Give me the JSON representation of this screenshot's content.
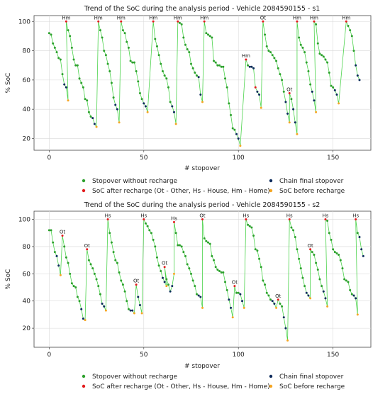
{
  "colors": {
    "background": "#ffffff",
    "grid": "#d9d9d9",
    "connector_line": "#4cd34c",
    "stopover_without_recharge": "#2ca02c",
    "soc_after_recharge": "#e31a1c",
    "chain_final_stopover": "#0b2a5b",
    "soc_before_recharge": "#f5a623"
  },
  "chart_data": [
    {
      "type": "scatter",
      "title": "Trend of the SoC during the analysis period - Vehicle 2084590155 - s1",
      "xlabel": "# stopover",
      "ylabel": "% SoC",
      "xlim": [
        -8,
        170
      ],
      "ylim": [
        12,
        104
      ],
      "xticks": [
        0,
        50,
        100,
        150
      ],
      "yticks": [
        20,
        40,
        60,
        80,
        100
      ],
      "grid": true,
      "legend_placement": "below",
      "legend": [
        "Stopover without recharge",
        "SoC after recharge (Ot - Other, Hs - House, Hm - Home)",
        "Chain final stopover",
        "SoC before recharge"
      ],
      "segments": [
        {
          "x0": 0,
          "values": [
            92,
            91,
            85,
            82,
            79,
            75,
            74,
            64,
            57,
            55,
            46
          ],
          "end_marker": "before"
        },
        {
          "x0": 9,
          "values": [
            100,
            94,
            90,
            82,
            74,
            70,
            70,
            61,
            58,
            55,
            47,
            46,
            38,
            35,
            34,
            30,
            28
          ],
          "end_marker": "before",
          "label": "Hm"
        },
        {
          "x0": 26,
          "values": [
            100,
            94,
            89,
            80,
            77,
            71,
            66,
            58,
            48,
            43,
            40,
            31
          ],
          "end_marker": "before",
          "label": "Hm"
        },
        {
          "x0": 38,
          "values": [
            100,
            94,
            92,
            86,
            82,
            73,
            72,
            72,
            66,
            59,
            51,
            47,
            44,
            42,
            38
          ],
          "end_marker": "before",
          "label": "Hm"
        },
        {
          "x0": 55,
          "values": [
            100,
            88,
            83,
            77,
            71,
            66,
            63,
            61,
            55,
            45,
            42,
            38,
            30
          ],
          "end_marker": "before",
          "label": "Hm"
        },
        {
          "x0": 68,
          "values": [
            100,
            99,
            98,
            89,
            84,
            81,
            79,
            71,
            68,
            65,
            63,
            62,
            50,
            45
          ],
          "end_marker": "before",
          "label": "Hm"
        },
        {
          "x0": 82,
          "values": [
            100,
            92,
            91,
            90,
            89,
            73,
            72,
            70,
            70,
            69,
            69,
            61,
            55,
            44,
            36,
            27,
            26,
            23,
            20,
            15
          ],
          "end_marker": "before",
          "label": "Hm"
        },
        {
          "x0": 104,
          "values": [
            74,
            70,
            69,
            69,
            68
          ],
          "end_marker": "chain",
          "label": "Hm"
        },
        {
          "x0": 109,
          "values": [
            55,
            52,
            50,
            41
          ],
          "end_marker": "before"
        },
        {
          "x0": 113,
          "values": [
            100,
            91,
            83,
            80,
            79,
            77,
            75,
            73,
            68,
            64,
            60,
            52,
            45,
            37,
            31
          ],
          "end_marker": "before",
          "label": "Ot"
        },
        {
          "x0": 127,
          "values": [
            51,
            47,
            40,
            31,
            23
          ],
          "end_marker": "before",
          "label": "Ot"
        },
        {
          "x0": 131,
          "values": [
            100,
            89,
            84,
            82,
            79,
            72,
            66,
            57,
            52,
            46,
            38
          ],
          "end_marker": "before",
          "label": "Hm"
        },
        {
          "x0": 140,
          "values": [
            100,
            98,
            85,
            78,
            77,
            76,
            74,
            72,
            65,
            56,
            55,
            53,
            50,
            44
          ],
          "end_marker": "before",
          "label": "Hm"
        },
        {
          "x0": 157,
          "values": [
            100,
            97,
            94,
            90,
            80,
            70,
            63,
            60
          ],
          "end_marker": "chain",
          "label": "Hm"
        }
      ]
    },
    {
      "type": "scatter",
      "title": "Trend of the SoC during the analysis period - Vehicle 2084590155 - s2",
      "xlabel": "# stopover",
      "ylabel": "% SoC",
      "xlim": [
        -8,
        170
      ],
      "ylim": [
        6,
        106
      ],
      "xticks": [
        0,
        50,
        100,
        150
      ],
      "yticks": [
        20,
        40,
        60,
        80,
        100
      ],
      "grid": true,
      "legend_placement": "below",
      "legend": [
        "Stopover without recharge",
        "SoC after recharge (Ot - Other, Hs - House, Hm - Home)",
        "Chain final stopover",
        "SoC before recharge"
      ],
      "segments": [
        {
          "x0": 0,
          "values": [
            92,
            92,
            83,
            76,
            73,
            66,
            59
          ],
          "end_marker": "before"
        },
        {
          "x0": 7,
          "values": [
            88,
            80,
            72,
            68,
            60,
            53,
            51,
            50,
            43,
            40,
            34,
            27,
            26
          ],
          "end_marker": "before",
          "label": "Ot"
        },
        {
          "x0": 20,
          "values": [
            78,
            70,
            67,
            64,
            60,
            56,
            51,
            45,
            38,
            36,
            33
          ],
          "end_marker": "before",
          "label": "Ot"
        },
        {
          "x0": 31,
          "values": [
            100,
            90,
            83,
            76,
            70,
            68,
            61,
            55,
            52,
            47,
            40,
            34,
            33,
            33,
            31
          ],
          "end_marker": "before",
          "label": "Hs"
        },
        {
          "x0": 46,
          "values": [
            52,
            43,
            37,
            31
          ],
          "end_marker": "before",
          "label": "Ot"
        },
        {
          "x0": 50,
          "values": [
            100,
            97,
            95,
            92,
            90,
            85,
            80,
            72,
            66,
            62,
            57,
            54,
            51
          ],
          "end_marker": "before",
          "label": "Hs"
        },
        {
          "x0": 61,
          "values": [
            65,
            56,
            52,
            47,
            51,
            60
          ],
          "end_marker": "before",
          "label": "Ot"
        },
        {
          "x0": 66,
          "values": [
            98,
            90,
            81,
            81,
            80,
            76,
            73,
            67,
            64,
            60,
            55,
            51,
            45,
            44,
            43,
            35
          ],
          "end_marker": "before",
          "label": "Hs"
        },
        {
          "x0": 81,
          "values": [
            100,
            86,
            84,
            83,
            82,
            73,
            70,
            65,
            63,
            62,
            61,
            61,
            54,
            48,
            41,
            35,
            28
          ],
          "end_marker": "before",
          "label": "Ot"
        },
        {
          "x0": 98,
          "values": [
            51,
            46,
            46,
            45,
            40,
            35
          ],
          "end_marker": "before",
          "label": "Ot"
        },
        {
          "x0": 104,
          "values": [
            100,
            96,
            95,
            94,
            88,
            78,
            77,
            71,
            65,
            55,
            52,
            46,
            44,
            41,
            40,
            38,
            35
          ],
          "end_marker": "before",
          "label": "Hs"
        },
        {
          "x0": 121,
          "values": [
            41,
            38,
            36,
            28,
            20,
            11
          ],
          "end_marker": "before",
          "label": "Ot"
        },
        {
          "x0": 127,
          "values": [
            100,
            94,
            92,
            87,
            78,
            71,
            64,
            57,
            51,
            46,
            44,
            42
          ],
          "end_marker": "before",
          "label": "Hs"
        },
        {
          "x0": 138,
          "values": [
            78,
            76,
            74,
            68,
            63,
            56,
            51,
            47,
            42,
            36
          ],
          "end_marker": "before",
          "label": "Ot"
        },
        {
          "x0": 146,
          "values": [
            100,
            99,
            90,
            85,
            78,
            76,
            75,
            74,
            70,
            64,
            56,
            55,
            54,
            48,
            45,
            44,
            42,
            30
          ],
          "end_marker": "before",
          "label": "Hs"
        },
        {
          "x0": 162,
          "values": [
            100,
            90,
            87,
            78,
            73
          ],
          "end_marker": "chain",
          "label": "Hs"
        }
      ]
    }
  ]
}
